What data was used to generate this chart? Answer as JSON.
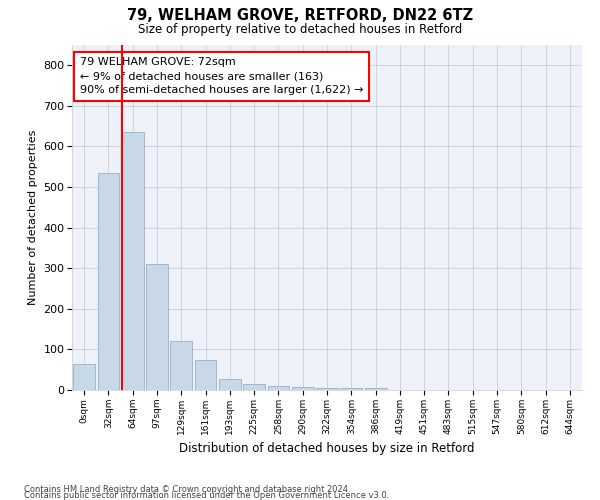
{
  "title": "79, WELHAM GROVE, RETFORD, DN22 6TZ",
  "subtitle": "Size of property relative to detached houses in Retford",
  "xlabel": "Distribution of detached houses by size in Retford",
  "ylabel": "Number of detached properties",
  "bar_color": "#c8d8e8",
  "bar_edge_color": "#a0b8d0",
  "background_color": "#eef2f8",
  "annotation_box_text": "79 WELHAM GROVE: 72sqm\n← 9% of detached houses are smaller (163)\n90% of semi-detached houses are larger (1,622) →",
  "redline_bar_index": 2,
  "categories": [
    "0sqm",
    "32sqm",
    "64sqm",
    "97sqm",
    "129sqm",
    "161sqm",
    "193sqm",
    "225sqm",
    "258sqm",
    "290sqm",
    "322sqm",
    "354sqm",
    "386sqm",
    "419sqm",
    "451sqm",
    "483sqm",
    "515sqm",
    "547sqm",
    "580sqm",
    "612sqm",
    "644sqm"
  ],
  "bar_heights": [
    65,
    535,
    635,
    310,
    120,
    75,
    28,
    14,
    10,
    8,
    5,
    5,
    6,
    0,
    0,
    0,
    0,
    0,
    0,
    0,
    0
  ],
  "ylim": [
    0,
    850
  ],
  "yticks": [
    0,
    100,
    200,
    300,
    400,
    500,
    600,
    700,
    800
  ],
  "footer_line1": "Contains HM Land Registry data © Crown copyright and database right 2024.",
  "footer_line2": "Contains public sector information licensed under the Open Government Licence v3.0.",
  "grid_color": "#c8d0dc"
}
